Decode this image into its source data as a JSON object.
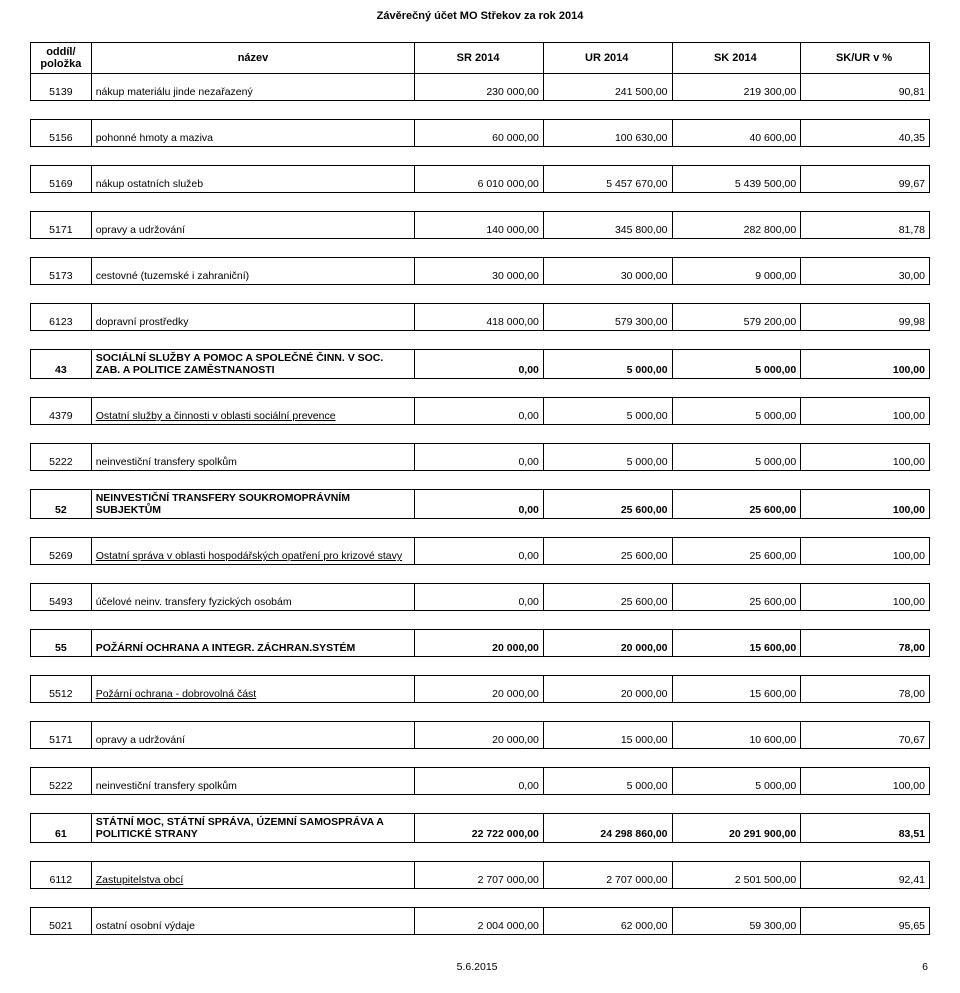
{
  "page_title": "Závěrečný účet MO Střekov za rok 2014",
  "columns": [
    "oddíl/ položka",
    "název",
    "SR 2014",
    "UR 2014",
    "SK 2014",
    "SK/UR v %"
  ],
  "rows": [
    {
      "type": "row",
      "id": "5139",
      "name": "nákup materiálu jinde nezařazený",
      "v": [
        "230 000,00",
        "241 500,00",
        "219 300,00",
        "90,81"
      ]
    },
    {
      "type": "row",
      "id": "5156",
      "name": "pohonné hmoty a maziva",
      "v": [
        "60 000,00",
        "100 630,00",
        "40 600,00",
        "40,35"
      ]
    },
    {
      "type": "row",
      "id": "5169",
      "name": "nákup ostatních služeb",
      "v": [
        "6 010 000,00",
        "5 457 670,00",
        "5 439 500,00",
        "99,67"
      ]
    },
    {
      "type": "row",
      "id": "5171",
      "name": "opravy a udržování",
      "v": [
        "140 000,00",
        "345 800,00",
        "282 800,00",
        "81,78"
      ]
    },
    {
      "type": "row",
      "id": "5173",
      "name": "cestovné (tuzemské i zahraniční)",
      "v": [
        "30 000,00",
        "30 000,00",
        "9 000,00",
        "30,00"
      ]
    },
    {
      "type": "row",
      "id": "6123",
      "name": "dopravní prostředky",
      "v": [
        "418 000,00",
        "579 300,00",
        "579 200,00",
        "99,98"
      ]
    },
    {
      "type": "section",
      "id": "43",
      "name": "SOCIÁLNÍ SLUŽBY A POMOC A SPOLEČNÉ ČINN. V SOC. ZAB. A POLITICE ZAMĚSTNANOSTI",
      "v": [
        "0,00",
        "5 000,00",
        "5 000,00",
        "100,00"
      ]
    },
    {
      "type": "under",
      "id": "4379",
      "name": "Ostatní služby a činnosti v oblasti sociální prevence",
      "v": [
        "0,00",
        "5 000,00",
        "5 000,00",
        "100,00"
      ]
    },
    {
      "type": "row",
      "id": "5222",
      "name": "neinvestiční transfery spolkům",
      "v": [
        "0,00",
        "5 000,00",
        "5 000,00",
        "100,00"
      ]
    },
    {
      "type": "section",
      "id": "52",
      "name": "NEINVESTIČNÍ TRANSFERY SOUKROMOPRÁVNÍM SUBJEKTŮM",
      "v": [
        "0,00",
        "25 600,00",
        "25 600,00",
        "100,00"
      ]
    },
    {
      "type": "under",
      "id": "5269",
      "name": "Ostatní správa v oblasti hospodářských opatření pro krizové stavy",
      "v": [
        "0,00",
        "25 600,00",
        "25 600,00",
        "100,00"
      ]
    },
    {
      "type": "row",
      "id": "5493",
      "name": "účelové neinv. transfery fyzických osobám",
      "v": [
        "0,00",
        "25 600,00",
        "25 600,00",
        "100,00"
      ]
    },
    {
      "type": "section",
      "id": "55",
      "name": "POŽÁRNÍ OCHRANA A INTEGR. ZÁCHRAN.SYSTÉM",
      "v": [
        "20 000,00",
        "20 000,00",
        "15 600,00",
        "78,00"
      ]
    },
    {
      "type": "under",
      "id": "5512",
      "name": "Požární ochrana - dobrovolná část",
      "v": [
        "20 000,00",
        "20 000,00",
        "15 600,00",
        "78,00"
      ]
    },
    {
      "type": "row",
      "id": "5171",
      "name": "opravy a udržování",
      "v": [
        "20 000,00",
        "15 000,00",
        "10 600,00",
        "70,67"
      ]
    },
    {
      "type": "row",
      "id": "5222",
      "name": "neinvestiční transfery spolkům",
      "v": [
        "0,00",
        "5 000,00",
        "5 000,00",
        "100,00"
      ]
    },
    {
      "type": "section",
      "id": "61",
      "name": "STÁTNÍ MOC, STÁTNÍ SPRÁVA, ÚZEMNÍ SAMOSPRÁVA A POLITICKÉ STRANY",
      "v": [
        "22 722 000,00",
        "24 298 860,00",
        "20 291 900,00",
        "83,51"
      ]
    },
    {
      "type": "under",
      "id": "6112",
      "name": "Zastupitelstva obcí",
      "v": [
        "2 707 000,00",
        "2 707 000,00",
        "2 501 500,00",
        "92,41"
      ]
    },
    {
      "type": "row",
      "id": "5021",
      "name": "ostatní osobní výdaje",
      "v": [
        "2 004 000,00",
        "62 000,00",
        "59 300,00",
        "95,65"
      ]
    }
  ],
  "footer_date": "5.6.2015",
  "footer_page": "6"
}
